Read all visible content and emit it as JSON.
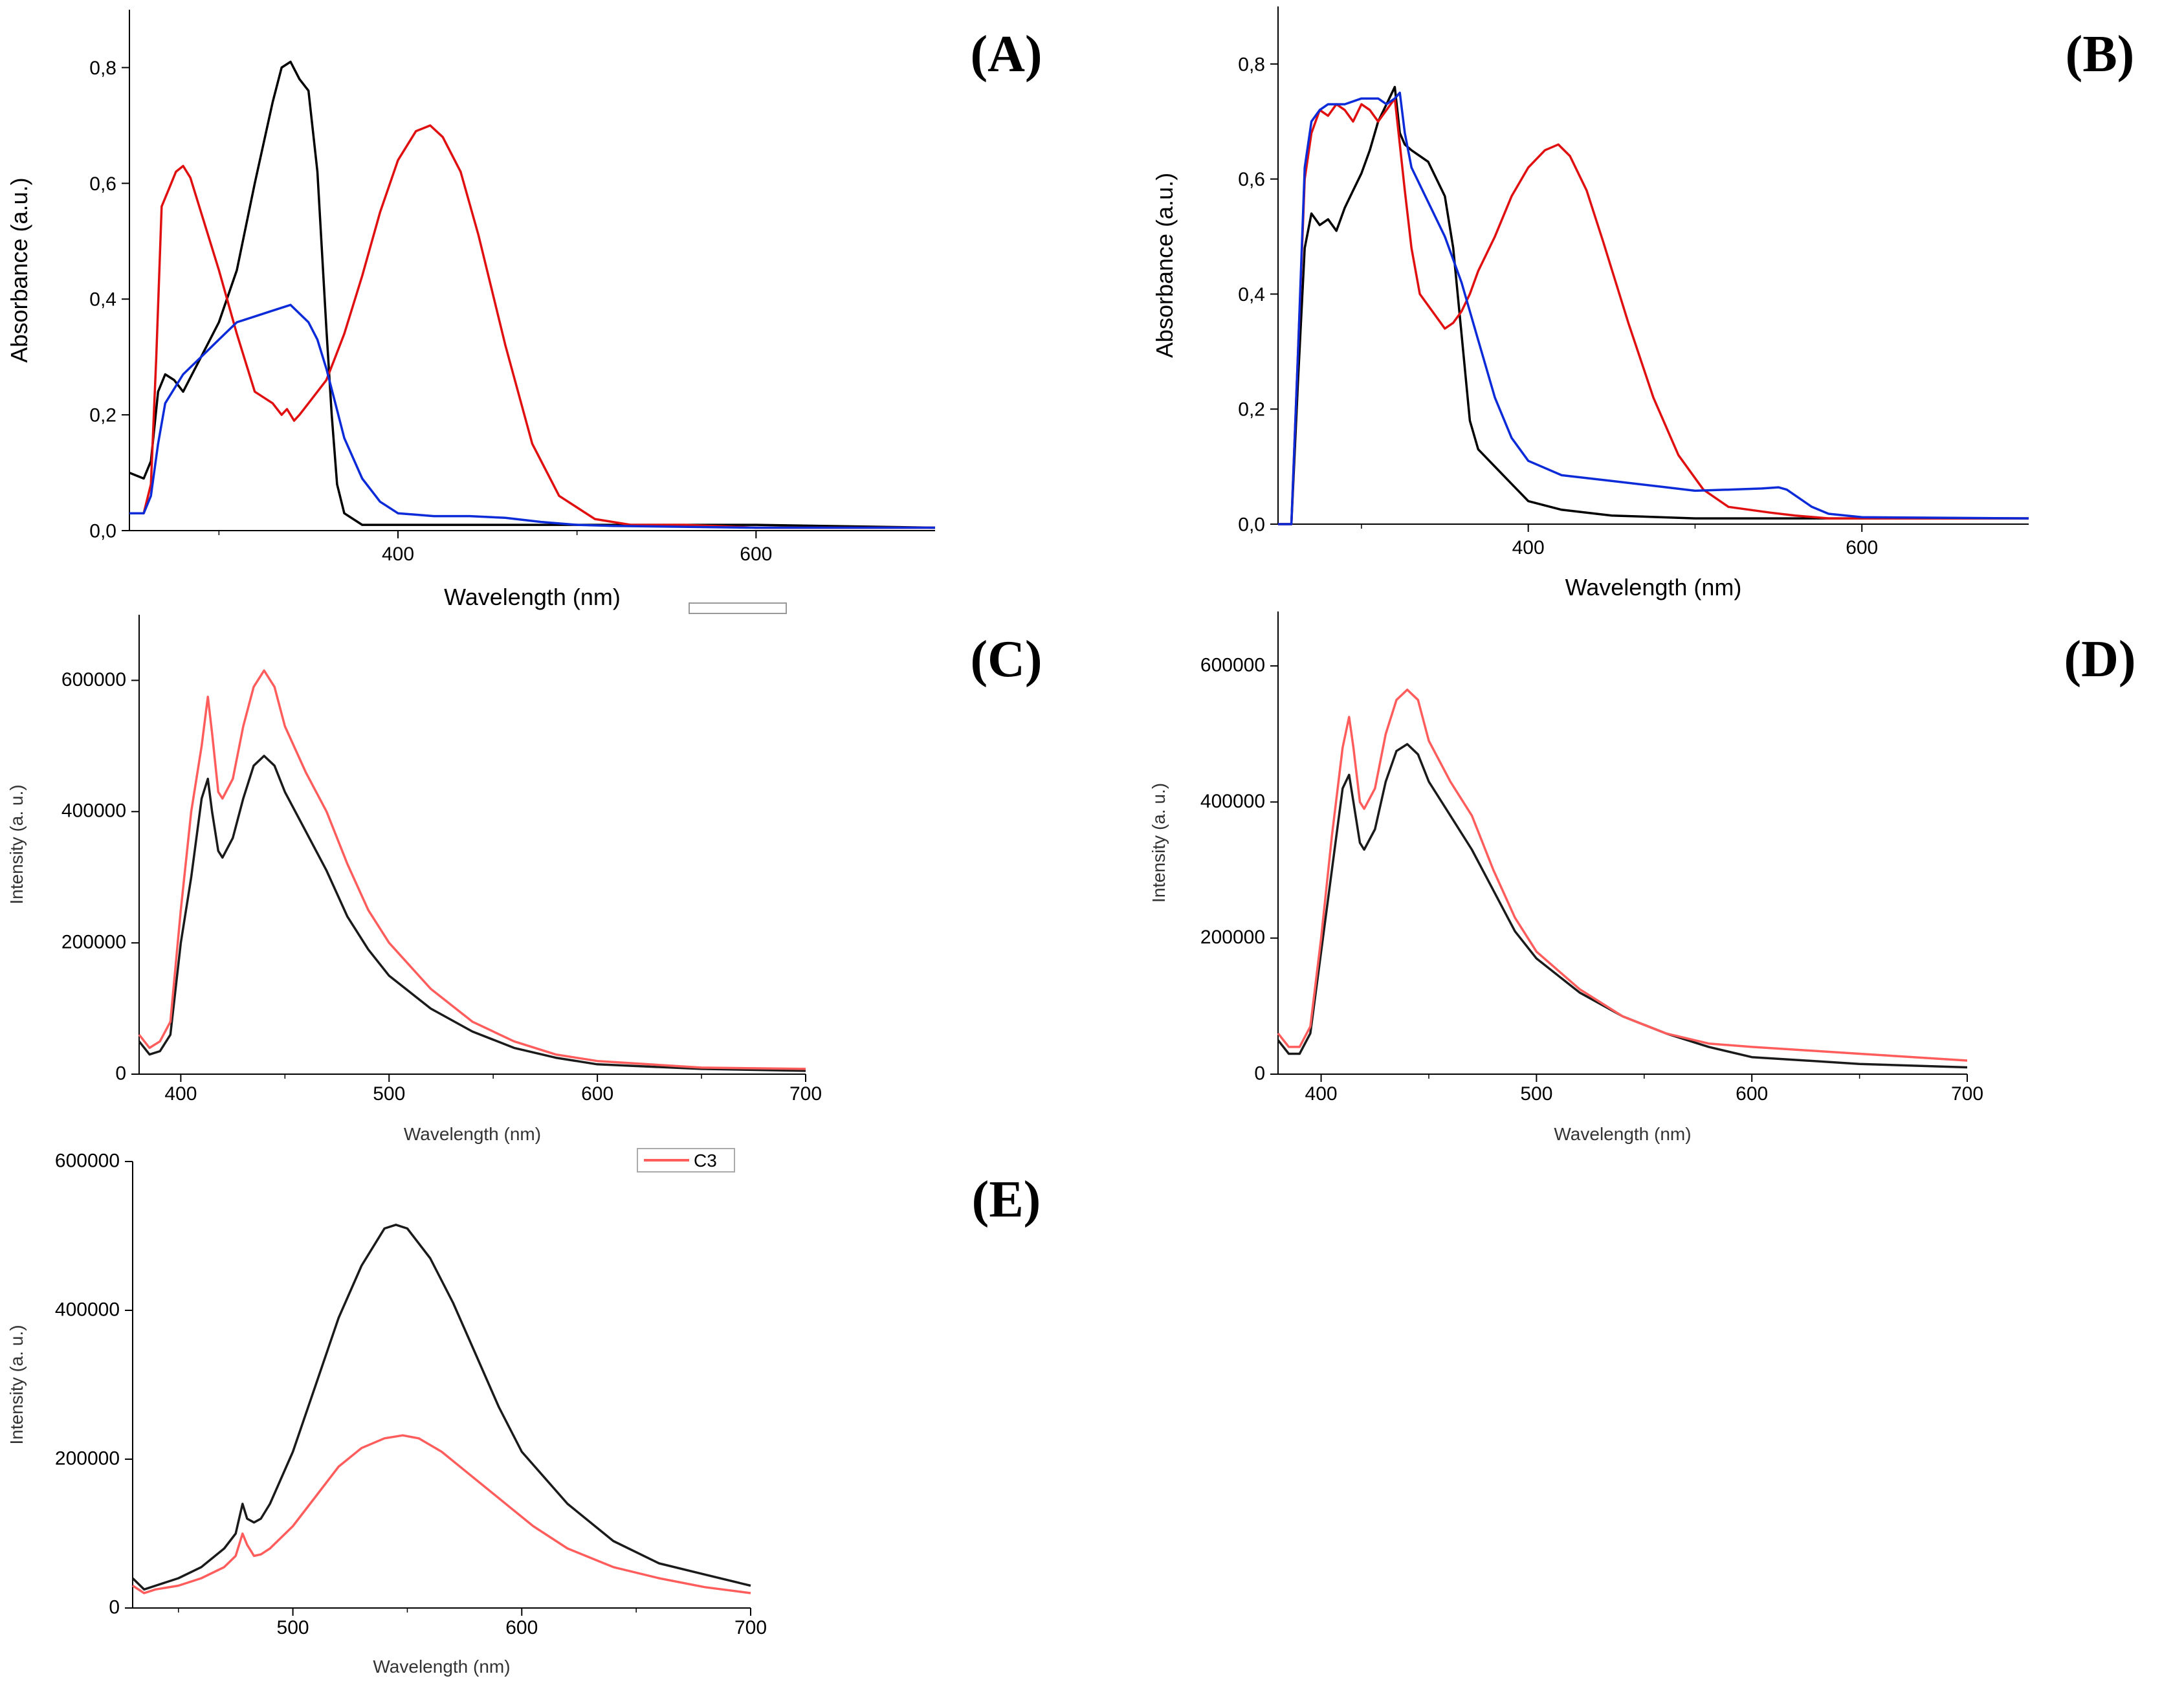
{
  "chart_data": [
    {
      "id": "A",
      "panel_label": "(A)",
      "type": "line",
      "xlabel": "Wavelength (nm)",
      "ylabel": "Absorbance (a.u.)",
      "xlim": [
        250,
        700
      ],
      "ylim": [
        0,
        0.9
      ],
      "xticks": [
        {
          "v": 400,
          "t": "400"
        },
        {
          "v": 600,
          "t": "600"
        }
      ],
      "yticks": [
        {
          "v": 0,
          "t": "0,0"
        },
        {
          "v": 0.2,
          "t": "0,2"
        },
        {
          "v": 0.4,
          "t": "0,4"
        },
        {
          "v": 0.6,
          "t": "0,6"
        },
        {
          "v": 0.8,
          "t": "0,8"
        }
      ],
      "legend": null,
      "series": [
        {
          "name": "black",
          "color": "#000000",
          "x": [
            250,
            258,
            262,
            266,
            270,
            275,
            280,
            285,
            290,
            300,
            310,
            320,
            330,
            335,
            340,
            345,
            350,
            355,
            360,
            363,
            366,
            370,
            380,
            400,
            500,
            600,
            700
          ],
          "y": [
            0.1,
            0.09,
            0.12,
            0.24,
            0.27,
            0.26,
            0.24,
            0.27,
            0.3,
            0.36,
            0.45,
            0.6,
            0.74,
            0.8,
            0.81,
            0.78,
            0.76,
            0.62,
            0.35,
            0.2,
            0.08,
            0.03,
            0.01,
            0.01,
            0.01,
            0.01,
            0.005
          ]
        },
        {
          "name": "red",
          "color": "#e01010",
          "x": [
            250,
            258,
            262,
            265,
            268,
            272,
            276,
            280,
            284,
            290,
            300,
            310,
            320,
            330,
            335,
            338,
            342,
            345,
            350,
            355,
            360,
            365,
            370,
            380,
            390,
            400,
            410,
            418,
            425,
            435,
            445,
            460,
            475,
            490,
            510,
            530,
            560,
            600,
            650,
            700
          ],
          "y": [
            0.03,
            0.03,
            0.08,
            0.3,
            0.56,
            0.59,
            0.62,
            0.63,
            0.61,
            0.55,
            0.45,
            0.34,
            0.24,
            0.22,
            0.2,
            0.21,
            0.19,
            0.2,
            0.22,
            0.24,
            0.26,
            0.3,
            0.34,
            0.44,
            0.55,
            0.64,
            0.69,
            0.7,
            0.68,
            0.62,
            0.51,
            0.32,
            0.15,
            0.06,
            0.02,
            0.01,
            0.01,
            0.005,
            0.005,
            0.005
          ]
        },
        {
          "name": "blue",
          "color": "#0b2ad8",
          "x": [
            250,
            258,
            262,
            266,
            270,
            280,
            290,
            300,
            310,
            320,
            330,
            340,
            350,
            355,
            360,
            365,
            370,
            380,
            390,
            400,
            420,
            440,
            460,
            480,
            500,
            520,
            600,
            700
          ],
          "y": [
            0.03,
            0.03,
            0.06,
            0.15,
            0.22,
            0.27,
            0.3,
            0.33,
            0.36,
            0.37,
            0.38,
            0.39,
            0.36,
            0.33,
            0.28,
            0.22,
            0.16,
            0.09,
            0.05,
            0.03,
            0.025,
            0.025,
            0.022,
            0.015,
            0.01,
            0.008,
            0.005,
            0.005
          ]
        }
      ]
    },
    {
      "id": "B",
      "panel_label": "(B)",
      "type": "line",
      "xlabel": "Wavelength (nm)",
      "ylabel": "Absorbance (a.u.)",
      "xlim": [
        250,
        700
      ],
      "ylim": [
        0,
        0.9
      ],
      "xticks": [
        {
          "v": 400,
          "t": "400"
        },
        {
          "v": 600,
          "t": "600"
        }
      ],
      "yticks": [
        {
          "v": 0,
          "t": "0,0"
        },
        {
          "v": 0.2,
          "t": "0,2"
        },
        {
          "v": 0.4,
          "t": "0,4"
        },
        {
          "v": 0.6,
          "t": "0,6"
        },
        {
          "v": 0.8,
          "t": "0,8"
        }
      ],
      "legend": null,
      "series": [
        {
          "name": "black",
          "color": "#000000",
          "x": [
            250,
            258,
            262,
            266,
            270,
            275,
            280,
            285,
            290,
            295,
            300,
            305,
            310,
            315,
            320,
            323,
            326,
            330,
            340,
            350,
            355,
            360,
            365,
            370,
            380,
            390,
            400,
            420,
            450,
            500,
            600,
            700
          ],
          "y": [
            0.0,
            0.0,
            0.25,
            0.48,
            0.54,
            0.52,
            0.53,
            0.51,
            0.55,
            0.58,
            0.61,
            0.65,
            0.7,
            0.73,
            0.76,
            0.68,
            0.66,
            0.65,
            0.63,
            0.57,
            0.48,
            0.33,
            0.18,
            0.13,
            0.1,
            0.07,
            0.04,
            0.025,
            0.015,
            0.01,
            0.01,
            0.01
          ]
        },
        {
          "name": "red",
          "color": "#e01010",
          "x": [
            250,
            258,
            262,
            266,
            270,
            275,
            280,
            285,
            290,
            295,
            300,
            305,
            310,
            315,
            320,
            323,
            326,
            330,
            335,
            340,
            345,
            350,
            355,
            360,
            365,
            370,
            375,
            380,
            390,
            400,
            410,
            418,
            425,
            435,
            445,
            460,
            475,
            490,
            505,
            520,
            545,
            560,
            580,
            600,
            700
          ],
          "y": [
            0.0,
            0.0,
            0.3,
            0.6,
            0.68,
            0.72,
            0.71,
            0.73,
            0.72,
            0.7,
            0.73,
            0.72,
            0.7,
            0.72,
            0.74,
            0.66,
            0.58,
            0.48,
            0.4,
            0.38,
            0.36,
            0.34,
            0.35,
            0.37,
            0.4,
            0.44,
            0.47,
            0.5,
            0.57,
            0.62,
            0.65,
            0.66,
            0.64,
            0.58,
            0.49,
            0.35,
            0.22,
            0.12,
            0.06,
            0.03,
            0.02,
            0.015,
            0.01,
            0.01,
            0.01
          ]
        },
        {
          "name": "blue",
          "color": "#0b2ad8",
          "x": [
            250,
            258,
            262,
            266,
            270,
            275,
            280,
            290,
            300,
            310,
            315,
            320,
            323,
            326,
            330,
            340,
            350,
            360,
            370,
            380,
            390,
            400,
            420,
            450,
            480,
            500,
            520,
            540,
            550,
            555,
            560,
            570,
            580,
            600,
            700
          ],
          "y": [
            0.0,
            0.0,
            0.3,
            0.62,
            0.7,
            0.72,
            0.73,
            0.73,
            0.74,
            0.74,
            0.73,
            0.74,
            0.75,
            0.68,
            0.62,
            0.56,
            0.5,
            0.42,
            0.32,
            0.22,
            0.15,
            0.11,
            0.085,
            0.075,
            0.065,
            0.058,
            0.06,
            0.062,
            0.064,
            0.06,
            0.05,
            0.03,
            0.018,
            0.012,
            0.01
          ]
        }
      ]
    },
    {
      "id": "C",
      "panel_label": "(C)",
      "type": "line",
      "xlabel": "Wavelength (nm)",
      "ylabel": "Intensity (a. u.)",
      "xlim": [
        380,
        700
      ],
      "ylim": [
        0,
        700000
      ],
      "xticks": [
        {
          "v": 400,
          "t": "400"
        },
        {
          "v": 500,
          "t": "500"
        },
        {
          "v": 600,
          "t": "600"
        },
        {
          "v": 700,
          "t": "700"
        }
      ],
      "yticks": [
        {
          "v": 0,
          "t": "0"
        },
        {
          "v": 200000,
          "t": "200000"
        },
        {
          "v": 400000,
          "t": "400000"
        },
        {
          "v": 600000,
          "t": "600000"
        }
      ],
      "legend": null,
      "series": [
        {
          "name": "black",
          "color": "#1a1a1a",
          "x": [
            380,
            385,
            390,
            395,
            400,
            405,
            410,
            413,
            415,
            418,
            420,
            425,
            430,
            435,
            440,
            445,
            450,
            460,
            470,
            480,
            490,
            500,
            520,
            540,
            560,
            580,
            600,
            650,
            700
          ],
          "y": [
            50000,
            30000,
            35000,
            60000,
            200000,
            300000,
            420000,
            450000,
            400000,
            340000,
            330000,
            360000,
            420000,
            470000,
            485000,
            470000,
            430000,
            370000,
            310000,
            240000,
            190000,
            150000,
            100000,
            65000,
            40000,
            25000,
            15000,
            8000,
            5000
          ]
        },
        {
          "name": "red",
          "color": "#ff5c5c",
          "x": [
            380,
            385,
            390,
            395,
            400,
            405,
            410,
            413,
            415,
            418,
            420,
            425,
            430,
            435,
            440,
            445,
            450,
            460,
            470,
            480,
            490,
            500,
            520,
            540,
            560,
            580,
            600,
            650,
            700
          ],
          "y": [
            60000,
            40000,
            50000,
            80000,
            250000,
            400000,
            500000,
            575000,
            520000,
            430000,
            420000,
            450000,
            530000,
            590000,
            615000,
            590000,
            530000,
            460000,
            400000,
            320000,
            250000,
            200000,
            130000,
            80000,
            50000,
            30000,
            20000,
            10000,
            8000
          ]
        }
      ]
    },
    {
      "id": "D",
      "panel_label": "(D)",
      "type": "line",
      "xlabel": "Wavelength (nm)",
      "ylabel": "Intensity (a. u.)",
      "xlim": [
        380,
        700
      ],
      "ylim": [
        0,
        680000
      ],
      "xticks": [
        {
          "v": 400,
          "t": "400"
        },
        {
          "v": 500,
          "t": "500"
        },
        {
          "v": 600,
          "t": "600"
        },
        {
          "v": 700,
          "t": "700"
        }
      ],
      "yticks": [
        {
          "v": 0,
          "t": "0"
        },
        {
          "v": 200000,
          "t": "200000"
        },
        {
          "v": 400000,
          "t": "400000"
        },
        {
          "v": 600000,
          "t": "600000"
        }
      ],
      "legend": null,
      "series": [
        {
          "name": "black",
          "color": "#1a1a1a",
          "x": [
            380,
            385,
            390,
            395,
            400,
            405,
            410,
            413,
            415,
            418,
            420,
            425,
            430,
            435,
            440,
            445,
            450,
            460,
            470,
            480,
            490,
            500,
            520,
            540,
            560,
            580,
            600,
            650,
            700
          ],
          "y": [
            50000,
            30000,
            30000,
            60000,
            180000,
            300000,
            420000,
            440000,
            400000,
            340000,
            330000,
            360000,
            430000,
            475000,
            485000,
            470000,
            430000,
            380000,
            330000,
            270000,
            210000,
            170000,
            120000,
            85000,
            60000,
            40000,
            25000,
            15000,
            10000
          ]
        },
        {
          "name": "red",
          "color": "#ff5c5c",
          "x": [
            380,
            385,
            390,
            395,
            400,
            405,
            410,
            413,
            415,
            418,
            420,
            425,
            430,
            435,
            440,
            445,
            450,
            460,
            470,
            480,
            490,
            500,
            520,
            540,
            560,
            580,
            600,
            650,
            700
          ],
          "y": [
            60000,
            40000,
            40000,
            70000,
            200000,
            350000,
            480000,
            525000,
            480000,
            400000,
            390000,
            420000,
            500000,
            550000,
            565000,
            550000,
            490000,
            430000,
            380000,
            300000,
            230000,
            180000,
            125000,
            85000,
            60000,
            45000,
            40000,
            30000,
            20000
          ]
        }
      ]
    },
    {
      "id": "E",
      "panel_label": "(E)",
      "type": "line",
      "xlabel": "Wavelength (nm)",
      "ylabel": "Intensity (a. u.)",
      "xlim": [
        430,
        700
      ],
      "ylim": [
        0,
        600000
      ],
      "xticks": [
        {
          "v": 500,
          "t": "500"
        },
        {
          "v": 600,
          "t": "600"
        },
        {
          "v": 700,
          "t": "700"
        }
      ],
      "yticks": [
        {
          "v": 0,
          "t": "0"
        },
        {
          "v": 200000,
          "t": "200000"
        },
        {
          "v": 400000,
          "t": "400000"
        },
        {
          "v": 600000,
          "t": "600000"
        }
      ],
      "legend": {
        "label": "C3",
        "color": "#ff5c5c"
      },
      "series": [
        {
          "name": "black",
          "color": "#1a1a1a",
          "x": [
            430,
            435,
            440,
            450,
            460,
            470,
            475,
            478,
            480,
            483,
            486,
            490,
            500,
            510,
            520,
            530,
            540,
            545,
            550,
            560,
            570,
            580,
            590,
            600,
            620,
            640,
            660,
            680,
            700
          ],
          "y": [
            40000,
            25000,
            30000,
            40000,
            55000,
            80000,
            100000,
            140000,
            120000,
            115000,
            120000,
            140000,
            210000,
            300000,
            390000,
            460000,
            510000,
            515000,
            510000,
            470000,
            410000,
            340000,
            270000,
            210000,
            140000,
            90000,
            60000,
            45000,
            30000
          ]
        },
        {
          "name": "red",
          "color": "#ff5c5c",
          "x": [
            430,
            435,
            440,
            450,
            460,
            470,
            475,
            478,
            480,
            483,
            486,
            490,
            500,
            510,
            520,
            530,
            540,
            548,
            555,
            565,
            575,
            585,
            595,
            605,
            620,
            640,
            660,
            680,
            700
          ],
          "y": [
            30000,
            20000,
            25000,
            30000,
            40000,
            55000,
            70000,
            100000,
            85000,
            70000,
            72000,
            80000,
            110000,
            150000,
            190000,
            215000,
            228000,
            232000,
            228000,
            210000,
            185000,
            160000,
            135000,
            110000,
            80000,
            55000,
            40000,
            28000,
            20000
          ]
        }
      ]
    }
  ]
}
